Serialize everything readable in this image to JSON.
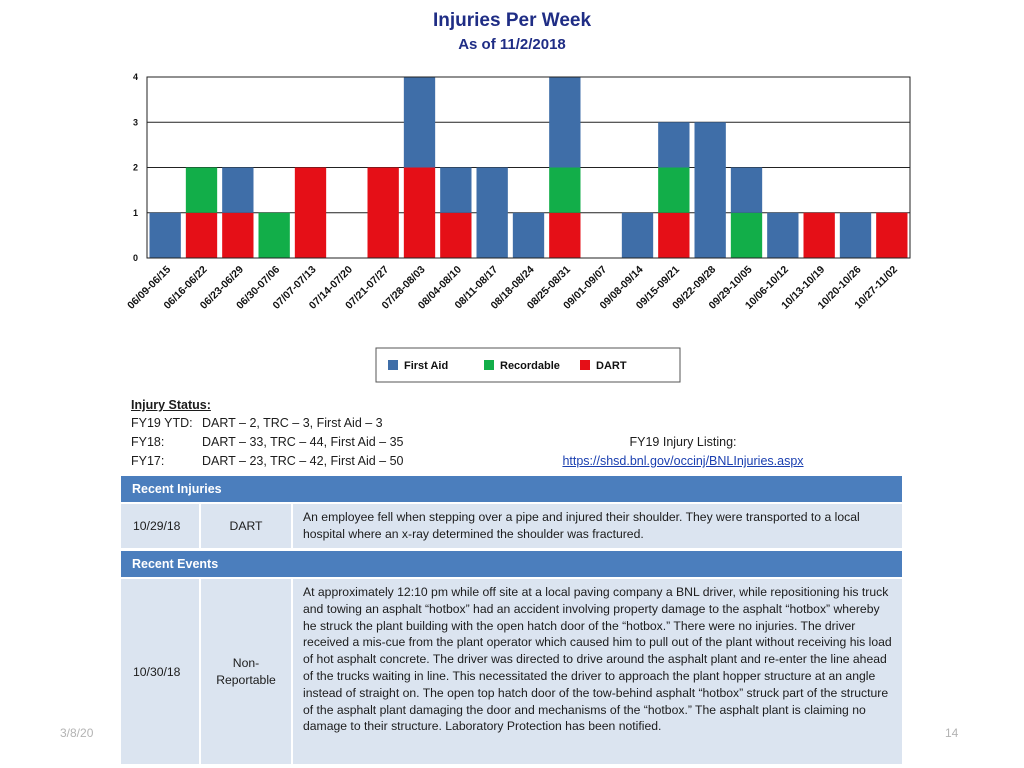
{
  "chart_data": {
    "type": "bar",
    "stacked": true,
    "title": "Injuries Per Week",
    "subtitle": "As of 11/2/2018",
    "xlabel": "",
    "ylabel": "",
    "ylim": [
      0,
      4
    ],
    "yticks": [
      0,
      1,
      2,
      3,
      4
    ],
    "grid": true,
    "legend": "bottom-center",
    "categories": [
      "06/09-06/15",
      "06/16-06/22",
      "06/23-06/29",
      "06/30-07/06",
      "07/07-07/13",
      "07/14-07/20",
      "07/21-07/27",
      "07/28-08/03",
      "08/04-08/10",
      "08/11-08/17",
      "08/18-08/24",
      "08/25-08/31",
      "09/01-09/07",
      "09/08-09/14",
      "09/15-09/21",
      "09/22-09/28",
      "09/29-10/05",
      "10/06-10/12",
      "10/13-10/19",
      "10/20-10/26",
      "10/27-11/02"
    ],
    "series": [
      {
        "name": "DART",
        "color": "#e50f17",
        "values": [
          0,
          1,
          1,
          0,
          2,
          0,
          2,
          2,
          1,
          0,
          0,
          1,
          0,
          0,
          1,
          0,
          0,
          0,
          1,
          0,
          1
        ]
      },
      {
        "name": "Recordable",
        "color": "#12ae49",
        "values": [
          0,
          1,
          0,
          1,
          0,
          0,
          0,
          0,
          0,
          0,
          0,
          1,
          0,
          0,
          1,
          0,
          1,
          0,
          0,
          0,
          0
        ]
      },
      {
        "name": "First Aid",
        "color": "#3f6ea8",
        "values": [
          1,
          0,
          1,
          0,
          0,
          0,
          0,
          2,
          1,
          2,
          1,
          2,
          0,
          1,
          1,
          3,
          1,
          1,
          0,
          1,
          0
        ]
      }
    ],
    "legend_order": [
      "First Aid",
      "Recordable",
      "DART"
    ]
  },
  "status": {
    "heading": "Injury Status:",
    "rows": [
      {
        "label": "FY19 YTD:",
        "value": "DART – 2, TRC – 3, First Aid – 3"
      },
      {
        "label": "FY18:",
        "value": "DART – 33, TRC – 44, First Aid – 35"
      },
      {
        "label": "FY17:",
        "value": "DART – 23, TRC – 42, First Aid – 50"
      }
    ],
    "listing_label": "FY19 Injury Listing:",
    "listing_url": "https://shsd.bnl.gov/occinj/BNLInjuries.aspx"
  },
  "recent_injuries": {
    "heading": "Recent Injuries",
    "rows": [
      {
        "date": "10/29/18",
        "type": "DART",
        "description": "An employee fell when stepping over a pipe and injured their shoulder.  They were transported to a local hospital where an x-ray determined the shoulder was fractured."
      }
    ]
  },
  "recent_events": {
    "heading": "Recent Events",
    "rows": [
      {
        "date": "10/30/18",
        "type": "Non-Reportable",
        "description": "At approximately 12:10 pm while off site at a local paving company a BNL driver, while repositioning his truck and towing an asphalt “hotbox” had an accident involving property damage to the asphalt “hotbox” whereby he struck the plant building with the open hatch door of the “hotbox.” There were no injuries.  The driver received a mis-cue from the plant operator which caused him to pull out of the plant without receiving his load of hot asphalt concrete. The driver was directed to drive around the asphalt plant and re-enter the line ahead of the trucks waiting in line. This necessitated the driver to approach the plant hopper structure at an angle instead of straight on. The open top hatch door of the tow-behind asphalt “hotbox” struck part of the structure of the asphalt plant damaging the door and mechanisms of the “hotbox.” The asphalt plant is claiming no damage to their structure. Laboratory Protection has been notified."
      }
    ]
  },
  "footer": {
    "date": "3/8/20",
    "page": "14"
  },
  "colors": {
    "title": "#1f2d85",
    "header_bar": "#4b7ebd",
    "row_bg": "#dbe4f0",
    "link": "#1a3fb0",
    "footer_text": "#b3b3b3"
  }
}
